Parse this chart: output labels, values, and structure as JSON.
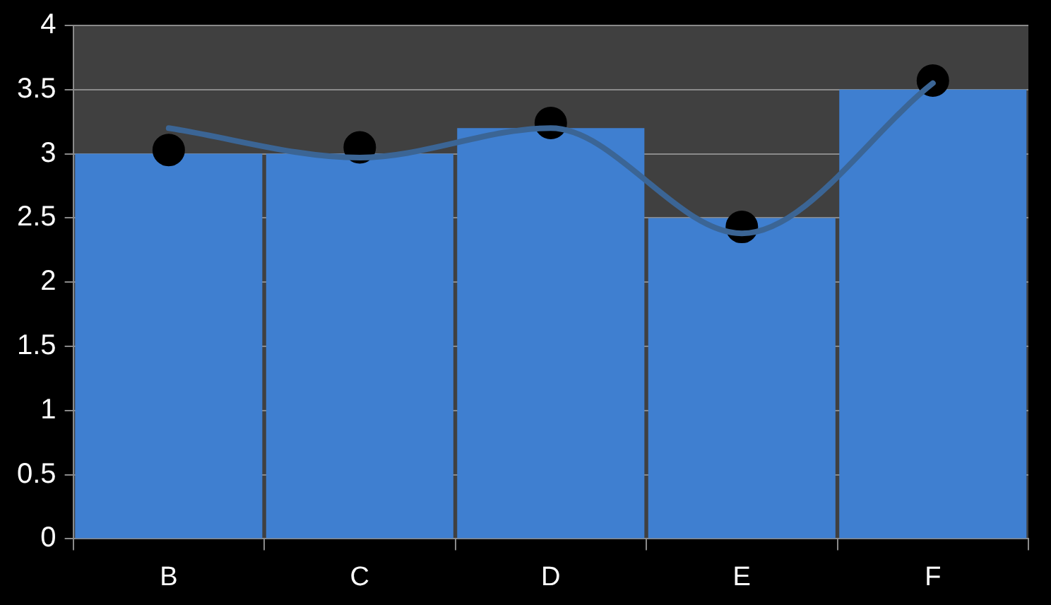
{
  "chart_data": {
    "type": "bar",
    "categories": [
      "B",
      "C",
      "D",
      "E",
      "F"
    ],
    "ylim": [
      0,
      4
    ],
    "yticks": [
      0,
      0.5,
      1,
      1.5,
      2,
      2.5,
      3,
      3.5,
      4
    ],
    "grid": "y",
    "series": [
      {
        "color": "#3f7fd0",
        "values": [
          3,
          3,
          3.2,
          2.5,
          3.5
        ]
      },
      {
        "type": "scatter",
        "color": "#000000",
        "marker": "circle",
        "x": [
          "B",
          "C",
          "D",
          "E",
          "F"
        ],
        "values": [
          3.03,
          3.05,
          3.24,
          2.43,
          3.57
        ]
      },
      {
        "type": "line",
        "color": "#3b6595",
        "marker": "none",
        "values": [
          3.2,
          2.97,
          3.2,
          2.38,
          3.55
        ]
      }
    ]
  }
}
